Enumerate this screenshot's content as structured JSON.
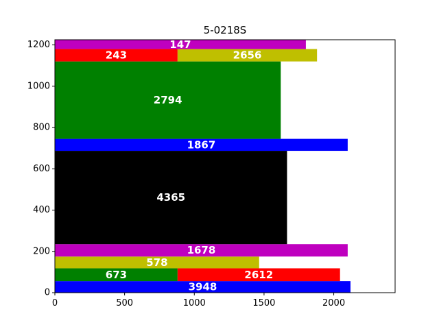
{
  "chart_data": {
    "type": "bar",
    "orientation": "horizontal-stacked",
    "title": "5-0218S",
    "xlabel": "",
    "ylabel": "",
    "xlim": [
      0,
      2440
    ],
    "ylim": [
      0,
      1225
    ],
    "xticks": [
      0,
      500,
      1000,
      1500,
      2000
    ],
    "yticks": [
      0,
      200,
      400,
      600,
      800,
      1000,
      1200
    ],
    "grid": false,
    "legend": "none",
    "bars": [
      {
        "y0": 0,
        "y1": 56,
        "x0": 0,
        "x1": 2120,
        "color": "#0000ff",
        "label": "3948"
      },
      {
        "y0": 56,
        "y1": 118,
        "x0": 0,
        "x1": 880,
        "color": "#008000",
        "label": "673"
      },
      {
        "y0": 56,
        "y1": 118,
        "x0": 880,
        "x1": 2045,
        "color": "#ff0000",
        "label": "2612"
      },
      {
        "y0": 118,
        "y1": 175,
        "x0": 0,
        "x1": 1465,
        "color": "#bfbf00",
        "label": "578"
      },
      {
        "y0": 175,
        "y1": 235,
        "x0": 0,
        "x1": 2100,
        "color": "#bf00bf",
        "label": "1678"
      },
      {
        "y0": 235,
        "y1": 687,
        "x0": 0,
        "x1": 1665,
        "color": "#000000",
        "label": "4365"
      },
      {
        "y0": 687,
        "y1": 745,
        "x0": 0,
        "x1": 2100,
        "color": "#0000ff",
        "label": "1867"
      },
      {
        "y0": 745,
        "y1": 1120,
        "x0": 0,
        "x1": 1620,
        "color": "#008000",
        "label": "2794"
      },
      {
        "y0": 1120,
        "y1": 1180,
        "x0": 0,
        "x1": 880,
        "color": "#ff0000",
        "label": "243"
      },
      {
        "y0": 1120,
        "y1": 1180,
        "x0": 880,
        "x1": 1880,
        "color": "#bfbf00",
        "label": "2656"
      },
      {
        "y0": 1180,
        "y1": 1225,
        "x0": 0,
        "x1": 1800,
        "color": "#bf00bf",
        "label": "147"
      }
    ]
  }
}
